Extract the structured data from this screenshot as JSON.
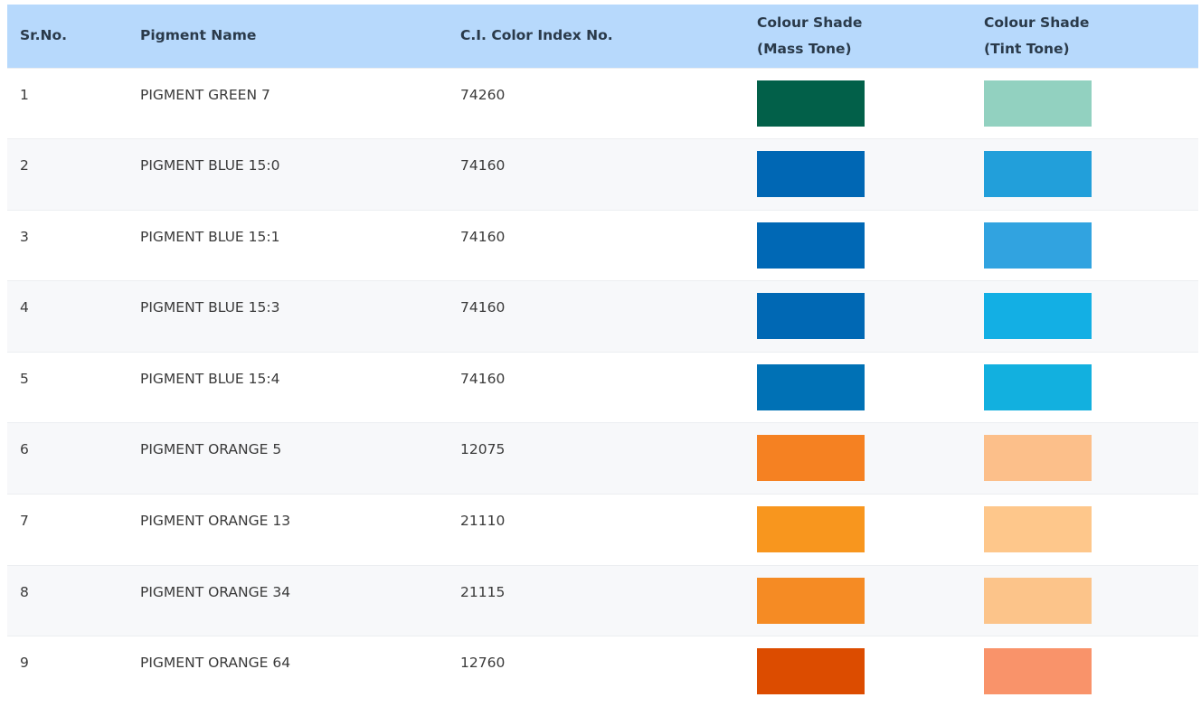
{
  "table": {
    "headers": {
      "sr_no": "Sr.No.",
      "pigment_name": "Pigment Name",
      "ci_index": "C.I. Color Index No.",
      "mass_tone_line1": "Colour Shade",
      "mass_tone_line2": "(Mass Tone)",
      "tint_tone_line1": "Colour Shade",
      "tint_tone_line2": "(Tint Tone)"
    },
    "rows": [
      {
        "sr": "1",
        "name": "PIGMENT GREEN 7",
        "ci": "74260",
        "mass": "#026049",
        "tint": "#92d1c0"
      },
      {
        "sr": "2",
        "name": "PIGMENT BLUE 15:0",
        "ci": "74160",
        "mass": "#0067b4",
        "tint": "#229fda"
      },
      {
        "sr": "3",
        "name": "PIGMENT BLUE 15:1",
        "ci": "74160",
        "mass": "#0068b5",
        "tint": "#31a3e0"
      },
      {
        "sr": "4",
        "name": "PIGMENT BLUE 15:3",
        "ci": "74160",
        "mass": "#0068b4",
        "tint": "#13afe4"
      },
      {
        "sr": "5",
        "name": "PIGMENT BLUE 15:4",
        "ci": "74160",
        "mass": "#0071b5",
        "tint": "#12b0df"
      },
      {
        "sr": "6",
        "name": "PIGMENT ORANGE 5",
        "ci": "12075",
        "mass": "#f58122",
        "tint": "#fcbf8a"
      },
      {
        "sr": "7",
        "name": "PIGMENT ORANGE 13",
        "ci": "21110",
        "mass": "#f8961e",
        "tint": "#fec78b"
      },
      {
        "sr": "8",
        "name": "PIGMENT ORANGE 34",
        "ci": "21115",
        "mass": "#f58b24",
        "tint": "#fcc48a"
      },
      {
        "sr": "9",
        "name": "PIGMENT ORANGE 64",
        "ci": "12760",
        "mass": "#dc4c00",
        "tint": "#f9936a"
      }
    ]
  }
}
